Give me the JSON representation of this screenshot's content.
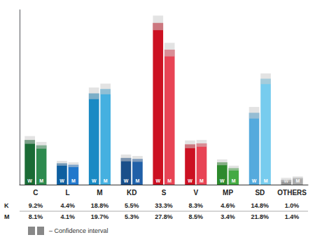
{
  "chart_data": {
    "type": "bar",
    "categories": [
      "C",
      "L",
      "M",
      "KD",
      "S",
      "V",
      "MP",
      "SD",
      "OTHERS"
    ],
    "series": [
      {
        "name": "W",
        "row_label": "K",
        "values": [
          9.2,
          4.4,
          18.8,
          5.5,
          33.3,
          8.3,
          4.6,
          14.8,
          1.0
        ],
        "value_labels": [
          "9.2%",
          "4.4%",
          "18.8%",
          "5.5%",
          "33.3%",
          "8.3%",
          "4.6%",
          "14.8%",
          "1.0%"
        ],
        "ci": [
          0.8,
          0.5,
          1.2,
          0.7,
          1.5,
          0.8,
          0.6,
          1.2,
          0.4
        ],
        "colors": [
          "#1a6b35",
          "#0e5fa0",
          "#1a8ac4",
          "#1a4f8a",
          "#cc1122",
          "#cc1122",
          "#2d8a2d",
          "#55aadd",
          "#999999"
        ]
      },
      {
        "name": "M",
        "row_label": "M",
        "values": [
          8.1,
          4.1,
          19.7,
          5.3,
          27.8,
          8.5,
          3.4,
          21.8,
          1.4
        ],
        "value_labels": [
          "8.1%",
          "4.1%",
          "19.7%",
          "5.3%",
          "27.8%",
          "8.5%",
          "3.4%",
          "21.8%",
          "1.4%"
        ],
        "ci": [
          0.7,
          0.5,
          1.1,
          0.6,
          1.4,
          0.7,
          0.5,
          1.1,
          0.3
        ],
        "colors": [
          "#2d8a4e",
          "#2278cc",
          "#45b0e0",
          "#2060a8",
          "#e84455",
          "#e84455",
          "#44aa44",
          "#77ccee",
          "#aaaaaa"
        ]
      }
    ],
    "annotations": [
      "– Confidence interval"
    ],
    "ylim": [
      0,
      36
    ],
    "tick_labels": "x",
    "grid": false,
    "legend": false
  }
}
